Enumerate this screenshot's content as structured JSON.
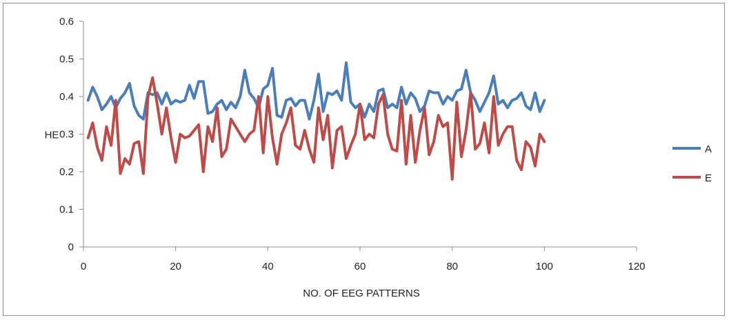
{
  "chart_data": {
    "type": "line",
    "title": "",
    "xlabel": "NO. OF EEG PATTERNS",
    "ylabel": "HE",
    "xlim": [
      0,
      120
    ],
    "ylim": [
      0,
      0.6
    ],
    "x_ticks": [
      "0",
      "20",
      "40",
      "60",
      "80",
      "100",
      "120"
    ],
    "y_ticks": [
      "0",
      "0.1",
      "0.2",
      "0.3",
      "0.4",
      "0.5",
      "0.6"
    ],
    "x_tick_values": [
      0,
      20,
      40,
      60,
      80,
      100,
      120
    ],
    "y_tick_values": [
      0,
      0.1,
      0.2,
      0.3,
      0.4,
      0.5,
      0.6
    ],
    "grid": false,
    "legend_position": "right",
    "series": [
      {
        "name": "A",
        "color": "#4a7ebb",
        "x": [
          1,
          2,
          3,
          4,
          5,
          6,
          7,
          8,
          9,
          10,
          11,
          12,
          13,
          14,
          15,
          16,
          17,
          18,
          19,
          20,
          21,
          22,
          23,
          24,
          25,
          26,
          27,
          28,
          29,
          30,
          31,
          32,
          33,
          34,
          35,
          36,
          37,
          38,
          39,
          40,
          41,
          42,
          43,
          44,
          45,
          46,
          47,
          48,
          49,
          50,
          51,
          52,
          53,
          54,
          55,
          56,
          57,
          58,
          59,
          60,
          61,
          62,
          63,
          64,
          65,
          66,
          67,
          68,
          69,
          70,
          71,
          72,
          73,
          74,
          75,
          76,
          77,
          78,
          79,
          80,
          81,
          82,
          83,
          84,
          85,
          86,
          87,
          88,
          89,
          90,
          91,
          92,
          93,
          94,
          95,
          96,
          97,
          98,
          99,
          100
        ],
        "values": [
          0.39,
          0.425,
          0.4,
          0.365,
          0.38,
          0.4,
          0.37,
          0.395,
          0.41,
          0.435,
          0.375,
          0.35,
          0.34,
          0.41,
          0.405,
          0.41,
          0.38,
          0.41,
          0.38,
          0.39,
          0.385,
          0.39,
          0.43,
          0.395,
          0.44,
          0.44,
          0.355,
          0.36,
          0.38,
          0.39,
          0.365,
          0.385,
          0.37,
          0.4,
          0.47,
          0.41,
          0.395,
          0.37,
          0.42,
          0.43,
          0.475,
          0.35,
          0.345,
          0.39,
          0.395,
          0.375,
          0.39,
          0.39,
          0.34,
          0.39,
          0.46,
          0.36,
          0.41,
          0.405,
          0.415,
          0.39,
          0.49,
          0.385,
          0.37,
          0.38,
          0.345,
          0.38,
          0.36,
          0.415,
          0.42,
          0.37,
          0.38,
          0.37,
          0.425,
          0.38,
          0.41,
          0.395,
          0.36,
          0.375,
          0.415,
          0.41,
          0.41,
          0.38,
          0.4,
          0.39,
          0.415,
          0.42,
          0.47,
          0.41,
          0.39,
          0.36,
          0.385,
          0.41,
          0.455,
          0.38,
          0.39,
          0.37,
          0.39,
          0.395,
          0.41,
          0.375,
          0.365,
          0.41,
          0.36,
          0.39
        ]
      },
      {
        "name": "E",
        "color": "#be4b48",
        "x": [
          1,
          2,
          3,
          4,
          5,
          6,
          7,
          8,
          9,
          10,
          11,
          12,
          13,
          14,
          15,
          16,
          17,
          18,
          19,
          20,
          21,
          22,
          23,
          24,
          25,
          26,
          27,
          28,
          29,
          30,
          31,
          32,
          33,
          34,
          35,
          36,
          37,
          38,
          39,
          40,
          41,
          42,
          43,
          44,
          45,
          46,
          47,
          48,
          49,
          50,
          51,
          52,
          53,
          54,
          55,
          56,
          57,
          58,
          59,
          60,
          61,
          62,
          63,
          64,
          65,
          66,
          67,
          68,
          69,
          70,
          71,
          72,
          73,
          74,
          75,
          76,
          77,
          78,
          79,
          80,
          81,
          82,
          83,
          84,
          85,
          86,
          87,
          88,
          89,
          90,
          91,
          92,
          93,
          94,
          95,
          96,
          97,
          98,
          99,
          100
        ],
        "values": [
          0.29,
          0.33,
          0.265,
          0.23,
          0.32,
          0.27,
          0.39,
          0.195,
          0.235,
          0.22,
          0.275,
          0.28,
          0.195,
          0.4,
          0.45,
          0.38,
          0.3,
          0.37,
          0.29,
          0.225,
          0.3,
          0.29,
          0.295,
          0.31,
          0.325,
          0.2,
          0.32,
          0.28,
          0.37,
          0.24,
          0.26,
          0.34,
          0.32,
          0.3,
          0.28,
          0.3,
          0.31,
          0.4,
          0.25,
          0.4,
          0.29,
          0.22,
          0.3,
          0.33,
          0.37,
          0.27,
          0.26,
          0.31,
          0.26,
          0.225,
          0.37,
          0.285,
          0.35,
          0.21,
          0.31,
          0.32,
          0.235,
          0.27,
          0.3,
          0.38,
          0.285,
          0.3,
          0.29,
          0.38,
          0.405,
          0.3,
          0.26,
          0.255,
          0.39,
          0.22,
          0.35,
          0.225,
          0.31,
          0.37,
          0.245,
          0.28,
          0.35,
          0.32,
          0.33,
          0.18,
          0.385,
          0.24,
          0.31,
          0.41,
          0.26,
          0.275,
          0.33,
          0.25,
          0.4,
          0.27,
          0.3,
          0.32,
          0.32,
          0.23,
          0.205,
          0.28,
          0.265,
          0.215,
          0.3,
          0.28
        ]
      }
    ]
  }
}
